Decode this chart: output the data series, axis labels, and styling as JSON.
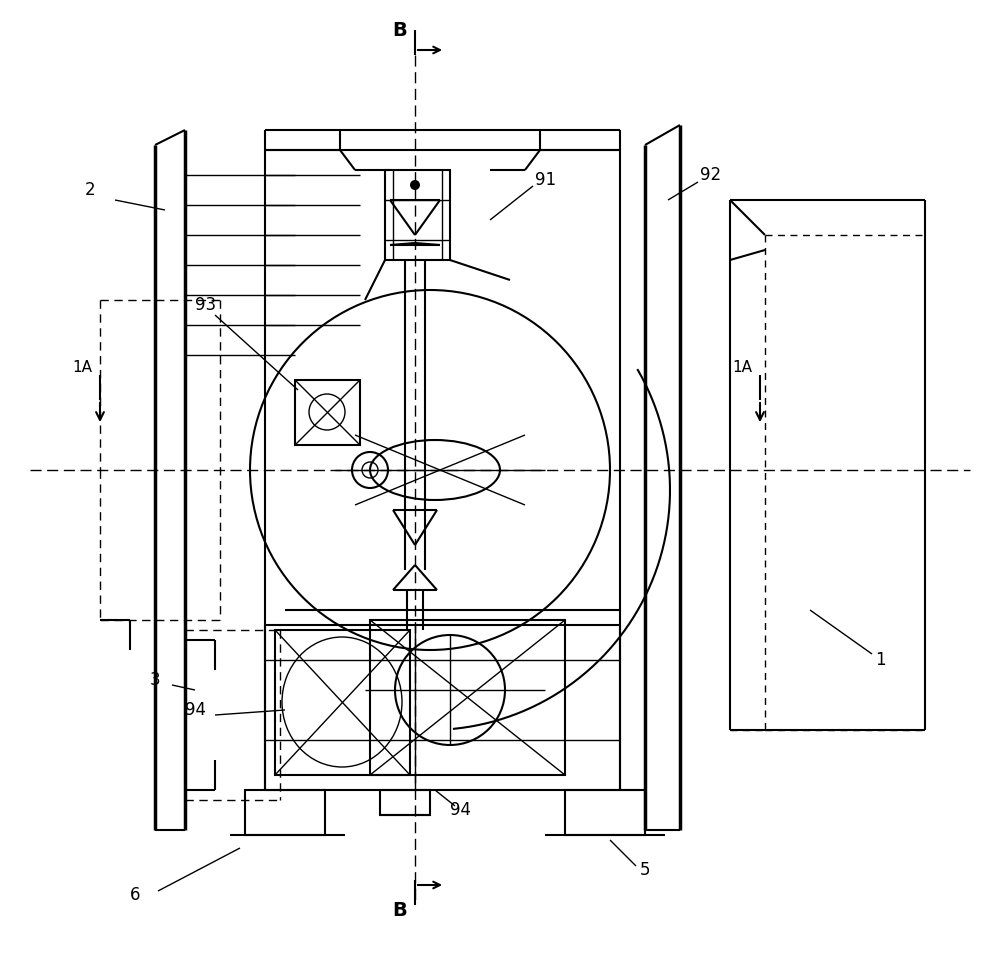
{
  "background_color": "#ffffff",
  "labels": {
    "B_top": "B",
    "B_bottom": "B",
    "A_left": "1A",
    "A_right": "1A",
    "n91": "91",
    "n92": "92",
    "n93": "93",
    "n94_left": "94",
    "n94_bottom": "94",
    "n1": "1",
    "n2": "2",
    "n3": "3",
    "n5": "5",
    "n6": "6"
  },
  "figsize": [
    10.0,
    9.57
  ],
  "dpi": 100
}
